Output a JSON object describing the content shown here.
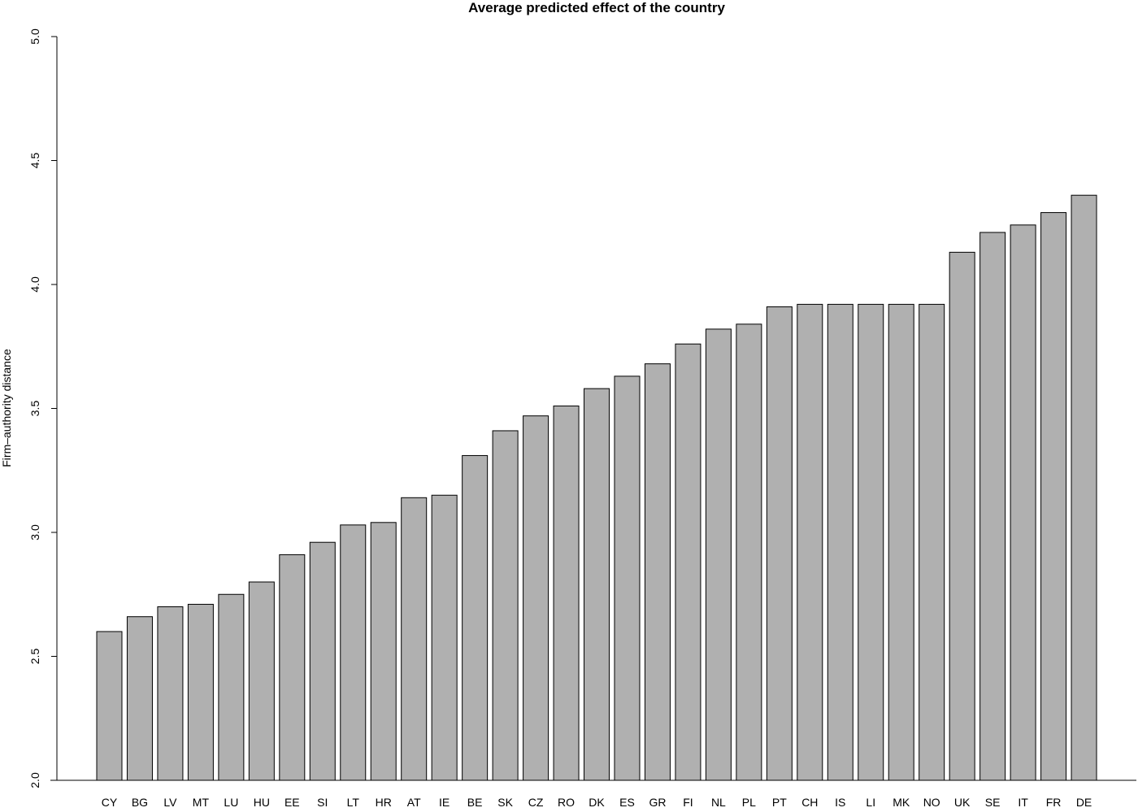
{
  "chart_data": {
    "type": "bar",
    "title": "Average predicted effect of the country",
    "xlabel": "",
    "ylabel": "Firm–authority distance",
    "ylim": [
      2.0,
      5.0
    ],
    "yticks": [
      "2.0",
      "2.5",
      "3.0",
      "3.5",
      "4.0",
      "4.5",
      "5.0"
    ],
    "grid": false,
    "legend": "none",
    "bar_color": "#b0b0b0",
    "bar_edge_color": "#000000",
    "categories": [
      "CY",
      "BG",
      "LV",
      "MT",
      "LU",
      "HU",
      "EE",
      "SI",
      "LT",
      "HR",
      "AT",
      "IE",
      "BE",
      "SK",
      "CZ",
      "RO",
      "DK",
      "ES",
      "GR",
      "FI",
      "NL",
      "PL",
      "PT",
      "CH",
      "IS",
      "LI",
      "MK",
      "NO",
      "UK",
      "SE",
      "IT",
      "FR",
      "DE"
    ],
    "values": [
      2.6,
      2.66,
      2.7,
      2.71,
      2.75,
      2.8,
      2.91,
      2.96,
      3.03,
      3.04,
      3.14,
      3.15,
      3.31,
      3.41,
      3.47,
      3.51,
      3.58,
      3.63,
      3.68,
      3.76,
      3.82,
      3.84,
      3.91,
      3.92,
      3.92,
      3.92,
      3.92,
      3.92,
      4.13,
      4.21,
      4.24,
      4.29,
      4.36
    ]
  }
}
